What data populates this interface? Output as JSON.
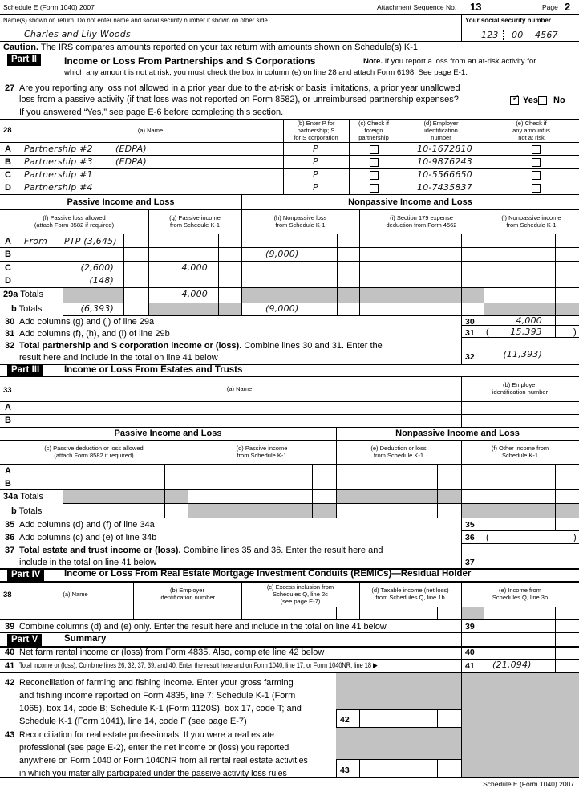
{
  "header": {
    "form_name": "Schedule E (Form 1040) 2007",
    "attachment_label": "Attachment Sequence No.",
    "attachment_no": "13",
    "page_label": "Page",
    "page_no": "2"
  },
  "names": {
    "label": "Name(s) shown on return. Do not enter name and social security number if shown on other side.",
    "value": "Charles and Lily Woods",
    "ssn_label": "Your social security number",
    "ssn": [
      "123",
      "00",
      "4567"
    ]
  },
  "caution": {
    "bold": "Caution.",
    "text": "The IRS compares amounts reported on your tax return with amounts shown on Schedule(s) K-1."
  },
  "part2": {
    "badge": "Part II",
    "title": "Income or Loss From Partnerships and S Corporations",
    "note_bold": "Note.",
    "note_1": "If you report a loss from an at-risk activity for",
    "note_2": "which any amount is not at risk, you must check the box in column (e) on line 28 and attach Form 6198. See page E-1.",
    "q27": {
      "num": "27",
      "line1": "Are you reporting any loss not allowed in a prior year due to the at-risk or basis limitations, a prior year unallowed",
      "line2": "loss from a passive activity (if that loss was not reported on Form 8582), or unreimbursed partnership expenses?",
      "line3": "If you answered “Yes,” see page E-6 before completing this section.",
      "yes_label": "Yes",
      "no_label": "No",
      "answer": "Yes"
    },
    "table28": {
      "num": "28",
      "headers": [
        "(a) Name",
        "(b) Enter P for\npartnership; S\nfor S corporation",
        "(c) Check if\nforeign\npartnership",
        "(d) Employer\nidentification\nnumber",
        "(e) Check if\nany amount is\nnot at risk"
      ],
      "rows": [
        {
          "letter": "A",
          "name": "Partnership #2",
          "note": "(EDPA)",
          "type": "P",
          "foreign": false,
          "ein": "10-1672810",
          "not_at_risk": false
        },
        {
          "letter": "B",
          "name": "Partnership #3",
          "note": "(EDPA)",
          "type": "P",
          "foreign": false,
          "ein": "10-9876243",
          "not_at_risk": false
        },
        {
          "letter": "C",
          "name": "Partnership #1",
          "note": "",
          "type": "P",
          "foreign": false,
          "ein": "10-5566650",
          "not_at_risk": false
        },
        {
          "letter": "D",
          "name": "Partnership #4",
          "note": "",
          "type": "P",
          "foreign": false,
          "ein": "10-7435837",
          "not_at_risk": false
        }
      ]
    },
    "passive_heading": "Passive Income and Loss",
    "nonpassive_heading": "Nonpassive Income and Loss",
    "col_headers": [
      "(f) Passive loss allowed\n(attach Form 8582 if required)",
      "(g) Passive income\nfrom Schedule K-1",
      "(h) Nonpassive loss\nfrom Schedule K-1",
      "(i) Section 179 expense\ndeduction from Form 4562",
      "(j) Nonpassive income\nfrom Schedule K-1"
    ],
    "income_rows": [
      {
        "letter": "A",
        "f_prefix": "From",
        "f": "PTP (3,645)",
        "g": "",
        "h": "",
        "i": "",
        "j": ""
      },
      {
        "letter": "B",
        "f_prefix": "",
        "f": "",
        "g": "",
        "h": "(9,000)",
        "i": "",
        "j": ""
      },
      {
        "letter": "C",
        "f_prefix": "",
        "f": "(2,600)",
        "g": "4,000",
        "h": "",
        "i": "",
        "j": ""
      },
      {
        "letter": "D",
        "f_prefix": "",
        "f": "(148)",
        "g": "",
        "h": "",
        "i": "",
        "j": ""
      }
    ],
    "totals_a": {
      "num": "29a",
      "label": "Totals",
      "g": "4,000",
      "j": ""
    },
    "totals_b": {
      "num": "b",
      "label": "Totals",
      "f": "(6,393)",
      "h": "(9,000)",
      "i": ""
    },
    "line30": {
      "num": "30",
      "text": "Add columns (g) and (j) of line 29a",
      "value": "4,000"
    },
    "line31": {
      "num": "31",
      "text": "Add columns (f), (h), and (i) of line 29b",
      "value": "15,393"
    },
    "line32": {
      "num": "32",
      "bold": "Total partnership and S corporation income or (loss).",
      "text1": "Combine lines 30 and 31. Enter the",
      "text2": "result here and include in the total on line 41 below",
      "value": "(11,393)"
    }
  },
  "part3": {
    "badge": "Part III",
    "title": "Income or Loss From Estates and Trusts",
    "num": "33",
    "headers": [
      "(a) Name",
      "(b) Employer\nidentification number"
    ],
    "letters": [
      "A",
      "B"
    ],
    "passive_heading": "Passive Income and Loss",
    "nonpassive_heading": "Nonpassive Income and Loss",
    "col_headers": [
      "(c) Passive deduction or loss allowed\n(attach Form 8582 if required)",
      "(d) Passive income\nfrom Schedule K-1",
      "(e) Deduction or loss\nfrom Schedule K-1",
      "(f) Other income from\nSchedule K-1"
    ],
    "totals_a": {
      "num": "34a",
      "label": "Totals"
    },
    "totals_b": {
      "num": "b",
      "label": "Totals"
    },
    "line35": {
      "num": "35",
      "text": "Add columns (d) and (f) of line 34a"
    },
    "line36": {
      "num": "36",
      "text": "Add columns (c) and (e) of line 34b"
    },
    "line37": {
      "num": "37",
      "bold": "Total estate and trust income or (loss).",
      "text1": "Combine lines 35 and 36. Enter the result here and",
      "text2": "include in the total on line 41 below"
    }
  },
  "part4": {
    "badge": "Part IV",
    "title": "Income or Loss From Real Estate Mortgage Investment Conduits (REMICs)—Residual Holder",
    "num": "38",
    "headers": [
      "(a) Name",
      "(b) Employer\nidentification number",
      "(c) Excess inclusion from\nSchedules Q, line 2c\n(see page E-7)",
      "(d) Taxable income (net loss)\nfrom Schedules Q, line 1b",
      "(e) Income from\nSchedules Q, line 3b"
    ],
    "line39": {
      "num": "39",
      "text": "Combine columns (d) and (e) only. Enter the result here and include in the total on line 41 below"
    }
  },
  "part5": {
    "badge": "Part V",
    "title": "Summary",
    "line40": {
      "num": "40",
      "text": "Net farm rental income or (loss) from Form 4835. Also, complete line 42 below"
    },
    "line41": {
      "num": "41",
      "text": "Total income or (loss). Combine lines 26, 32, 37, 39, and 40. Enter the result here and on Form 1040, line 17, or Form 1040NR, line 18 ▶",
      "value": "(21,094)"
    },
    "line42": {
      "num": "42",
      "lines": [
        "Reconciliation of farming and fishing income. Enter your gross farming",
        "and fishing income reported on Form 4835, line 7; Schedule K-1 (Form",
        "1065), box 14, code B; Schedule K-1 (Form 1120S), box 17, code T; and",
        "Schedule K-1 (Form 1041), line 14, code F (see page E-7)"
      ]
    },
    "line43": {
      "num": "43",
      "lines": [
        "Reconciliation for real estate professionals. If you were a real estate",
        "professional (see page E-2), enter the net income or (loss) you reported",
        "anywhere on Form 1040 or Form 1040NR from all rental real estate activities",
        "in which you materially participated under the passive activity loss rules"
      ]
    }
  },
  "footer": "Schedule E (Form 1040) 2007"
}
